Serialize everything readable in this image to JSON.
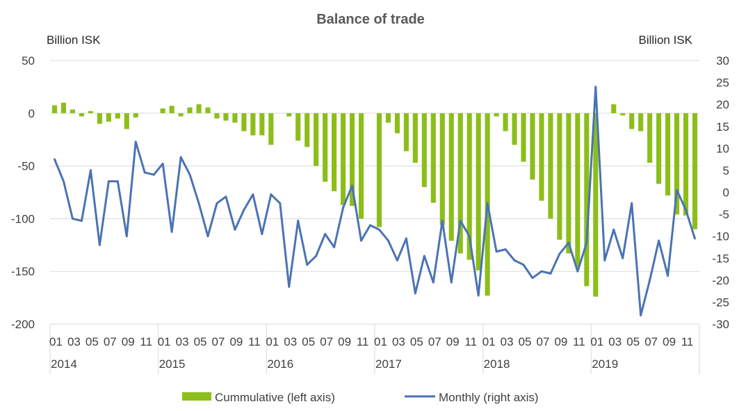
{
  "chart_data": {
    "type": "bar",
    "title": "Balance of trade",
    "left_axis": {
      "unit_label": "Billion ISK",
      "ylim": [
        -200,
        50
      ],
      "ticks": [
        50,
        0,
        -50,
        -100,
        -150,
        -200
      ]
    },
    "right_axis": {
      "unit_label": "Billion ISK",
      "ylim": [
        -30,
        30
      ],
      "ticks": [
        30,
        25,
        20,
        15,
        10,
        5,
        0,
        -5,
        -10,
        -15,
        -20,
        -25,
        -30
      ]
    },
    "x_month_labels": [
      "01",
      "03",
      "05",
      "07",
      "09",
      "11"
    ],
    "years": [
      "2014",
      "2015",
      "2016",
      "2017",
      "2018",
      "2019"
    ],
    "x": [
      "2014-01",
      "2014-02",
      "2014-03",
      "2014-04",
      "2014-05",
      "2014-06",
      "2014-07",
      "2014-08",
      "2014-09",
      "2014-10",
      "2014-11",
      "2014-12",
      "2015-01",
      "2015-02",
      "2015-03",
      "2015-04",
      "2015-05",
      "2015-06",
      "2015-07",
      "2015-08",
      "2015-09",
      "2015-10",
      "2015-11",
      "2015-12",
      "2016-01",
      "2016-02",
      "2016-03",
      "2016-04",
      "2016-05",
      "2016-06",
      "2016-07",
      "2016-08",
      "2016-09",
      "2016-10",
      "2016-11",
      "2016-12",
      "2017-01",
      "2017-02",
      "2017-03",
      "2017-04",
      "2017-05",
      "2017-06",
      "2017-07",
      "2017-08",
      "2017-09",
      "2017-10",
      "2017-11",
      "2017-12",
      "2018-01",
      "2018-02",
      "2018-03",
      "2018-04",
      "2018-05",
      "2018-06",
      "2018-07",
      "2018-08",
      "2018-09",
      "2018-10",
      "2018-11",
      "2018-12",
      "2019-01",
      "2019-02",
      "2019-03",
      "2019-04",
      "2019-05",
      "2019-06",
      "2019-07",
      "2019-08",
      "2019-09",
      "2019-10",
      "2019-11",
      "2019-12"
    ],
    "series": [
      {
        "name": "Cummulative (left axis)",
        "type": "bar",
        "axis": "left",
        "color": "#8cbe1a",
        "values": [
          7.5,
          10,
          3.5,
          -3,
          2,
          -10,
          -8,
          -5,
          -15,
          -4,
          0,
          0,
          4.5,
          7,
          -3,
          5.5,
          8.5,
          5.5,
          -5,
          -7,
          -9,
          -17,
          -21,
          -21,
          -30,
          0,
          -3,
          -26,
          -32,
          -50,
          -65,
          -74,
          -87,
          -88,
          -100,
          0,
          -108,
          -9,
          -19,
          -36,
          -47,
          -70,
          -85,
          -106,
          -121,
          -133,
          -139,
          -149,
          -173,
          -3,
          -17,
          -30,
          -46,
          -63,
          -83,
          -100,
          -120,
          -133,
          -146,
          -164,
          -174,
          0,
          8.5,
          -2,
          -15,
          -17,
          -47,
          -67,
          -78,
          -96,
          -97,
          -110
        ]
      },
      {
        "name": "Monthly (right axis)",
        "type": "line",
        "axis": "right",
        "color": "#4a73b3",
        "values": [
          7.5,
          2.5,
          -6,
          -6.5,
          5,
          -12,
          2.5,
          2.5,
          -10,
          11.5,
          4.5,
          4,
          6.5,
          -9,
          8,
          4,
          -2.5,
          -10,
          -2.5,
          -1,
          -8.5,
          -4,
          -0.5,
          -9.5,
          -0.5,
          -2.5,
          -21.5,
          -6.5,
          -16.5,
          -14.5,
          -9.5,
          -12.5,
          -3.5,
          1.5,
          -11,
          -7.5,
          -8.5,
          -11,
          -15.5,
          -10.5,
          -23,
          -14.5,
          -20.5,
          -6.5,
          -20.5,
          -6.5,
          -10,
          -23.5,
          -2.5,
          -13.5,
          -13,
          -15.5,
          -16.5,
          -19.5,
          -18,
          -18.5,
          -14,
          -11.5,
          -18,
          -11.5,
          24,
          -15.5,
          -8.5,
          -15,
          -2.5,
          -28,
          -20,
          -11,
          -19,
          0.5,
          -4,
          -10.5
        ]
      }
    ],
    "legend": {
      "position": "bottom"
    }
  }
}
